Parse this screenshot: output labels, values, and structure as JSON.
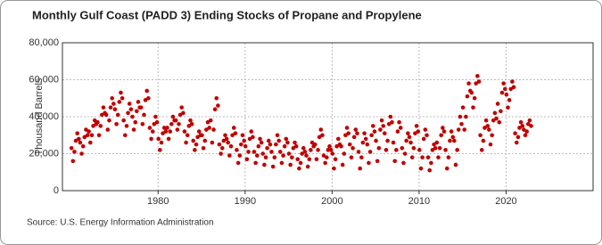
{
  "chart_data": {
    "type": "scatter",
    "title": "Monthly Gulf Coast (PADD 3) Ending Stocks of Propane and Propylene",
    "y_label": "Thousand Barrels",
    "source": "Source: U.S. Energy Information Administration",
    "xlim": [
      1969,
      2030
    ],
    "ylim": [
      0,
      80000
    ],
    "xticks": [
      1980,
      1990,
      2000,
      2010,
      2020
    ],
    "yticks": [
      0,
      {
        "value": 20000,
        "label": "20,000"
      },
      {
        "value": 40000,
        "label": "40,000"
      },
      {
        "value": 60000,
        "label": "60,000"
      },
      {
        "value": 80000,
        "label": "80,000"
      }
    ],
    "grid": true,
    "series": [
      {
        "color": "#c00000",
        "x": [
          1970.04,
          1970.21,
          1970.38,
          1970.54,
          1970.71,
          1970.88,
          1971.04,
          1971.21,
          1971.38,
          1971.54,
          1971.71,
          1971.88,
          1972.04,
          1972.21,
          1972.38,
          1972.54,
          1972.71,
          1972.88,
          1973.04,
          1973.21,
          1973.38,
          1973.54,
          1973.71,
          1973.88,
          1974.04,
          1974.21,
          1974.38,
          1974.54,
          1974.71,
          1974.88,
          1975.04,
          1975.21,
          1975.38,
          1975.54,
          1975.71,
          1975.88,
          1976.04,
          1976.21,
          1976.38,
          1976.54,
          1976.71,
          1976.88,
          1977.04,
          1977.21,
          1977.38,
          1977.54,
          1977.71,
          1977.88,
          1978.04,
          1978.21,
          1978.38,
          1978.54,
          1978.71,
          1978.88,
          1979.04,
          1979.21,
          1979.38,
          1979.54,
          1979.71,
          1979.88,
          1980.04,
          1980.21,
          1980.38,
          1980.54,
          1980.71,
          1980.88,
          1981.04,
          1981.21,
          1981.38,
          1981.54,
          1981.71,
          1981.88,
          1982.04,
          1982.21,
          1982.38,
          1982.54,
          1982.71,
          1982.88,
          1983.04,
          1983.21,
          1983.38,
          1983.54,
          1983.71,
          1983.88,
          1984.04,
          1984.21,
          1984.38,
          1984.54,
          1984.71,
          1984.88,
          1985.04,
          1985.21,
          1985.38,
          1985.54,
          1985.71,
          1985.88,
          1986.04,
          1986.21,
          1986.38,
          1986.54,
          1986.71,
          1986.88,
          1987.04,
          1987.21,
          1987.38,
          1987.54,
          1987.71,
          1987.88,
          1988.04,
          1988.21,
          1988.38,
          1988.54,
          1988.71,
          1988.88,
          1989.04,
          1989.21,
          1989.38,
          1989.54,
          1989.71,
          1989.88,
          1990.04,
          1990.21,
          1990.38,
          1990.54,
          1990.71,
          1990.88,
          1991.04,
          1991.21,
          1991.38,
          1991.54,
          1991.71,
          1991.88,
          1992.04,
          1992.21,
          1992.38,
          1992.54,
          1992.71,
          1992.88,
          1993.04,
          1993.21,
          1993.38,
          1993.54,
          1993.71,
          1993.88,
          1994.04,
          1994.21,
          1994.38,
          1994.54,
          1994.71,
          1994.88,
          1995.04,
          1995.21,
          1995.38,
          1995.54,
          1995.71,
          1995.88,
          1996.04,
          1996.21,
          1996.38,
          1996.54,
          1996.71,
          1996.88,
          1997.04,
          1997.21,
          1997.38,
          1997.54,
          1997.71,
          1997.88,
          1998.04,
          1998.21,
          1998.38,
          1998.54,
          1998.71,
          1998.88,
          1999.04,
          1999.21,
          1999.38,
          1999.54,
          1999.71,
          1999.88,
          2000.04,
          2000.21,
          2000.38,
          2000.54,
          2000.71,
          2000.88,
          2001.04,
          2001.21,
          2001.38,
          2001.54,
          2001.71,
          2001.88,
          2002.04,
          2002.21,
          2002.38,
          2002.54,
          2002.71,
          2002.88,
          2003.04,
          2003.21,
          2003.38,
          2003.54,
          2003.71,
          2003.88,
          2004.04,
          2004.21,
          2004.38,
          2004.54,
          2004.71,
          2004.88,
          2005.04,
          2005.21,
          2005.38,
          2005.54,
          2005.71,
          2005.88,
          2006.04,
          2006.21,
          2006.38,
          2006.54,
          2006.71,
          2006.88,
          2007.04,
          2007.21,
          2007.38,
          2007.54,
          2007.71,
          2007.88,
          2008.04,
          2008.21,
          2008.38,
          2008.54,
          2008.71,
          2008.88,
          2009.04,
          2009.21,
          2009.38,
          2009.54,
          2009.71,
          2009.88,
          2010.04,
          2010.21,
          2010.38,
          2010.54,
          2010.71,
          2010.88,
          2011.04,
          2011.21,
          2011.38,
          2011.54,
          2011.71,
          2011.88,
          2012.04,
          2012.21,
          2012.38,
          2012.54,
          2012.71,
          2012.88,
          2013.04,
          2013.21,
          2013.38,
          2013.54,
          2013.71,
          2013.88,
          2014.04,
          2014.21,
          2014.38,
          2014.54,
          2014.71,
          2014.88,
          2015.04,
          2015.21,
          2015.38,
          2015.54,
          2015.71,
          2015.88,
          2016.04,
          2016.21,
          2016.38,
          2016.54,
          2016.71,
          2016.88,
          2017.04,
          2017.21,
          2017.38,
          2017.54,
          2017.71,
          2017.88,
          2018.04,
          2018.21,
          2018.38,
          2018.54,
          2018.71,
          2018.88,
          2019.04,
          2019.21,
          2019.38,
          2019.54,
          2019.71,
          2019.88,
          2020.04,
          2020.21,
          2020.38,
          2020.54,
          2020.71,
          2020.88,
          2021.04,
          2021.21,
          2021.38,
          2021.54,
          2021.71,
          2021.88,
          2022.04,
          2022.21,
          2022.38,
          2022.54,
          2022.71,
          2022.88
        ],
        "values": [
          23000,
          16000,
          21000,
          27000,
          31000,
          28000,
          26000,
          20000,
          24000,
          29000,
          33000,
          30000,
          32000,
          26000,
          30000,
          35000,
          38000,
          36000,
          37000,
          30000,
          35000,
          41000,
          45000,
          42000,
          41000,
          33000,
          38000,
          45000,
          50000,
          47000,
          44000,
          36000,
          41000,
          48000,
          53000,
          50000,
          38000,
          30000,
          35000,
          42000,
          47000,
          44000,
          40000,
          33000,
          37000,
          43000,
          48000,
          45000,
          45000,
          36000,
          41000,
          49000,
          54000,
          50000,
          34000,
          28000,
          32000,
          36000,
          40000,
          37000,
          28000,
          22000,
          26000,
          31000,
          34000,
          32000,
          34000,
          28000,
          32000,
          36000,
          40000,
          38000,
          38000,
          33000,
          36000,
          41000,
          45000,
          42000,
          32000,
          26000,
          30000,
          35000,
          38000,
          36000,
          27000,
          22000,
          25000,
          29000,
          32000,
          30000,
          30000,
          23000,
          27000,
          33000,
          37000,
          34000,
          38000,
          26000,
          33000,
          44000,
          50000,
          46000,
          25000,
          20000,
          23000,
          27000,
          30000,
          28000,
          26000,
          19000,
          24000,
          30000,
          34000,
          31000,
          22000,
          15000,
          19000,
          25000,
          30000,
          27000,
          24000,
          17000,
          21000,
          28000,
          32000,
          29000,
          21000,
          15000,
          19000,
          24000,
          28000,
          26000,
          20000,
          14000,
          18000,
          23000,
          27000,
          25000,
          21000,
          13000,
          18000,
          25000,
          30000,
          27000,
          21000,
          15000,
          19000,
          24000,
          28000,
          26000,
          20000,
          14000,
          18000,
          23000,
          26000,
          24000,
          17000,
          12000,
          15000,
          20000,
          23000,
          21000,
          19000,
          13000,
          17000,
          22000,
          26000,
          24000,
          25000,
          17000,
          22000,
          29000,
          33000,
          30000,
          19000,
          15000,
          18000,
          22000,
          24000,
          22000,
          20000,
          12000,
          17000,
          24000,
          28000,
          25000,
          24000,
          14000,
          20000,
          30000,
          34000,
          31000,
          25000,
          18000,
          23000,
          29000,
          33000,
          31000,
          21000,
          12000,
          18000,
          26000,
          31000,
          28000,
          25000,
          15000,
          21000,
          30000,
          35000,
          32000,
          27000,
          16000,
          23000,
          33000,
          38000,
          35000,
          31000,
          22000,
          27000,
          36000,
          40000,
          37000,
          26000,
          16000,
          22000,
          32000,
          37000,
          34000,
          23000,
          15000,
          20000,
          27000,
          31000,
          29000,
          26000,
          18000,
          23000,
          31000,
          35000,
          32000,
          22000,
          12000,
          18000,
          28000,
          33000,
          30000,
          18000,
          11000,
          15000,
          22000,
          25000,
          23000,
          26000,
          18000,
          23000,
          30000,
          34000,
          32000,
          22000,
          12000,
          18000,
          27000,
          32000,
          29000,
          27000,
          14000,
          22000,
          33000,
          40000,
          36000,
          45000,
          33000,
          40000,
          51000,
          58000,
          54000,
          53000,
          45000,
          50000,
          58000,
          62000,
          59000,
          30000,
          22000,
          27000,
          34000,
          38000,
          35000,
          33000,
          25000,
          30000,
          38000,
          42000,
          39000,
          47000,
          37000,
          43000,
          53000,
          58000,
          55000,
          52000,
          45000,
          49000,
          55000,
          59000,
          56000,
          31000,
          26000,
          29000,
          34000,
          37000,
          35000,
          33000,
          30000,
          32000,
          36000,
          38000,
          35000
        ]
      }
    ]
  }
}
